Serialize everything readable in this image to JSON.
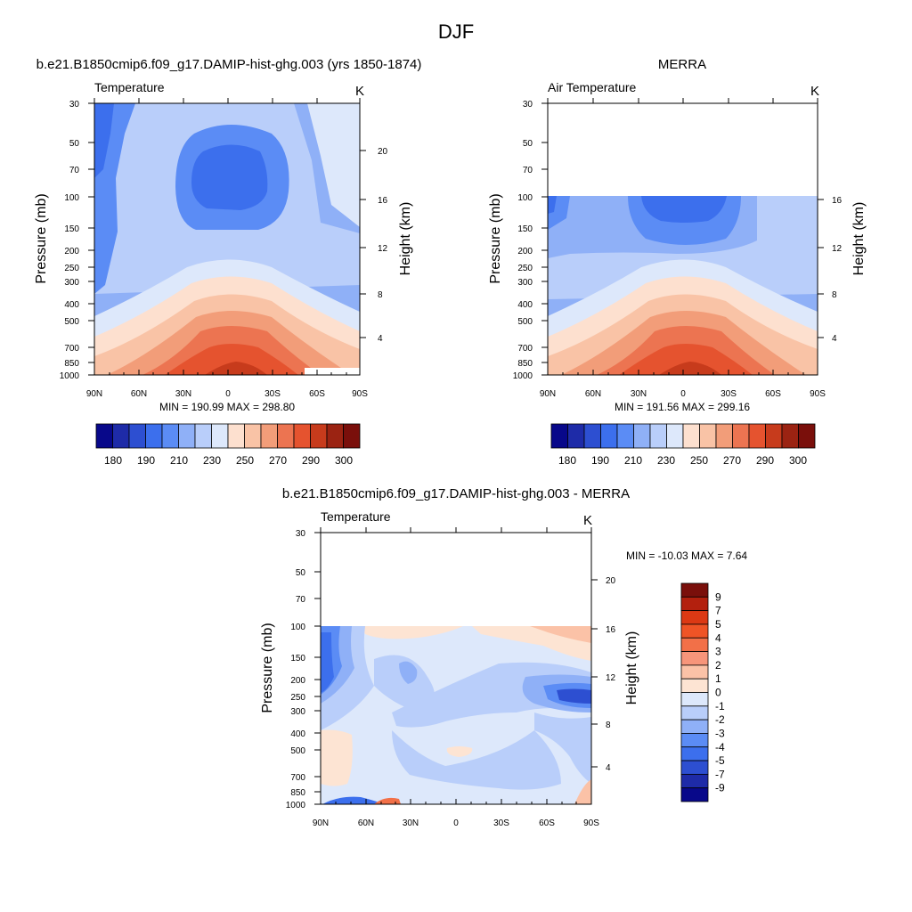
{
  "figure": {
    "title": "DJF",
    "panels": [
      {
        "id": "model",
        "title": "b.e21.B1850cmip6.f09_g17.DAMIP-hist-ghg.003 (yrs 1850-1874)",
        "left_string": "Temperature",
        "right_string": "K",
        "stats": "MIN = 190.99  MAX = 298.80",
        "ylabel": "Pressure (mb)",
        "ylabel_right": "Height (km)"
      },
      {
        "id": "obs",
        "title": "MERRA",
        "left_string": "Air Temperature",
        "right_string": "K",
        "stats": "MIN = 191.56  MAX = 299.16",
        "ylabel": "Pressure (mb)",
        "ylabel_right": "Height (km)"
      },
      {
        "id": "diff",
        "title": "b.e21.B1850cmip6.f09_g17.DAMIP-hist-ghg.003 - MERRA",
        "left_string": "Temperature",
        "right_string": "K",
        "stats": "MIN = -10.03  MAX =   7.64",
        "ylabel": "Pressure (mb)",
        "ylabel_right": "Height (km)"
      }
    ],
    "x_ticks": [
      "90N",
      "60N",
      "30N",
      "0",
      "30S",
      "60S",
      "90S"
    ],
    "pressure_ticks": [
      "30",
      "50",
      "70",
      "100",
      "150",
      "200",
      "250",
      "300",
      "400",
      "500",
      "700",
      "850",
      "1000"
    ],
    "height_ticks_top": [
      "20",
      "16",
      "12",
      "8",
      "4"
    ],
    "height_ticks_obs": [
      "16",
      "12",
      "8",
      "4"
    ],
    "height_ticks_diff": [
      "20",
      "16",
      "12",
      "8",
      "4"
    ]
  },
  "chart_data": [
    {
      "type": "heatmap",
      "title": "b.e21.B1850cmip6.f09_g17.DAMIP-hist-ghg.003 (yrs 1850-1874)",
      "variable": "Temperature",
      "units": "K",
      "xlabel": "",
      "ylabel": "Pressure (mb)",
      "ylabel_right": "Height (km)",
      "x_ticks": [
        "90N",
        "60N",
        "30N",
        "0",
        "30S",
        "60S",
        "90S"
      ],
      "y_ticks": [
        30,
        50,
        70,
        100,
        150,
        200,
        250,
        300,
        400,
        500,
        700,
        850,
        1000
      ],
      "y_range": [
        1000,
        30
      ],
      "y_scale": "log",
      "min": 190.99,
      "max": 298.8,
      "colorbar": {
        "levels": [
          180,
          185,
          190,
          200,
          210,
          220,
          230,
          240,
          250,
          260,
          270,
          280,
          290,
          295,
          300
        ],
        "labels": [
          "180",
          "190",
          "210",
          "230",
          "250",
          "270",
          "290",
          "300"
        ],
        "colors": [
          "#08088a",
          "#1e2ba8",
          "#2d4fd1",
          "#3c6fed",
          "#5b8cf5",
          "#8fb0f7",
          "#b9cefa",
          "#dde8fb",
          "#fde0cf",
          "#f9c3a6",
          "#f29d79",
          "#ec7451",
          "#e5532f",
          "#c73b1c",
          "#9b2312",
          "#7a0f0b"
        ]
      }
    },
    {
      "type": "heatmap",
      "title": "MERRA",
      "variable": "Air Temperature",
      "units": "K",
      "xlabel": "",
      "ylabel": "Pressure (mb)",
      "ylabel_right": "Height (km)",
      "x_ticks": [
        "90N",
        "60N",
        "30N",
        "0",
        "30S",
        "60S",
        "90S"
      ],
      "y_ticks": [
        30,
        50,
        70,
        100,
        150,
        200,
        250,
        300,
        400,
        500,
        700,
        850,
        1000
      ],
      "y_range": [
        1000,
        30
      ],
      "y_scale": "log",
      "data_top_pressure": 100,
      "min": 191.56,
      "max": 299.16,
      "colorbar": {
        "levels": [
          180,
          185,
          190,
          200,
          210,
          220,
          230,
          240,
          250,
          260,
          270,
          280,
          290,
          295,
          300
        ],
        "labels": [
          "180",
          "190",
          "210",
          "230",
          "250",
          "270",
          "290",
          "300"
        ],
        "colors": [
          "#08088a",
          "#1e2ba8",
          "#2d4fd1",
          "#3c6fed",
          "#5b8cf5",
          "#8fb0f7",
          "#b9cefa",
          "#dde8fb",
          "#fde0cf",
          "#f9c3a6",
          "#f29d79",
          "#ec7451",
          "#e5532f",
          "#c73b1c",
          "#9b2312",
          "#7a0f0b"
        ]
      }
    },
    {
      "type": "heatmap",
      "title": "b.e21.B1850cmip6.f09_g17.DAMIP-hist-ghg.003 - MERRA",
      "variable": "Temperature",
      "units": "K",
      "xlabel": "",
      "ylabel": "Pressure (mb)",
      "ylabel_right": "Height (km)",
      "x_ticks": [
        "90N",
        "60N",
        "30N",
        "0",
        "30S",
        "60S",
        "90S"
      ],
      "y_ticks": [
        30,
        50,
        70,
        100,
        150,
        200,
        250,
        300,
        400,
        500,
        700,
        850,
        1000
      ],
      "y_range": [
        1000,
        30
      ],
      "y_scale": "log",
      "data_top_pressure": 100,
      "min": -10.03,
      "max": 7.64,
      "colorbar": {
        "orientation": "vertical",
        "labels": [
          "9",
          "7",
          "5",
          "4",
          "3",
          "2",
          "1",
          "0",
          "-1",
          "-2",
          "-3",
          "-4",
          "-5",
          "-7",
          "-9"
        ],
        "colors": [
          "#7a0f0b",
          "#b3200e",
          "#dc3914",
          "#ef5426",
          "#f27048",
          "#f7957a",
          "#fbc2a7",
          "#fde4d3",
          "#dde8fb",
          "#b9cefa",
          "#8fb0f7",
          "#5b8cf5",
          "#3c6fed",
          "#2d4fd1",
          "#1e2ba8",
          "#08088a"
        ]
      }
    }
  ]
}
